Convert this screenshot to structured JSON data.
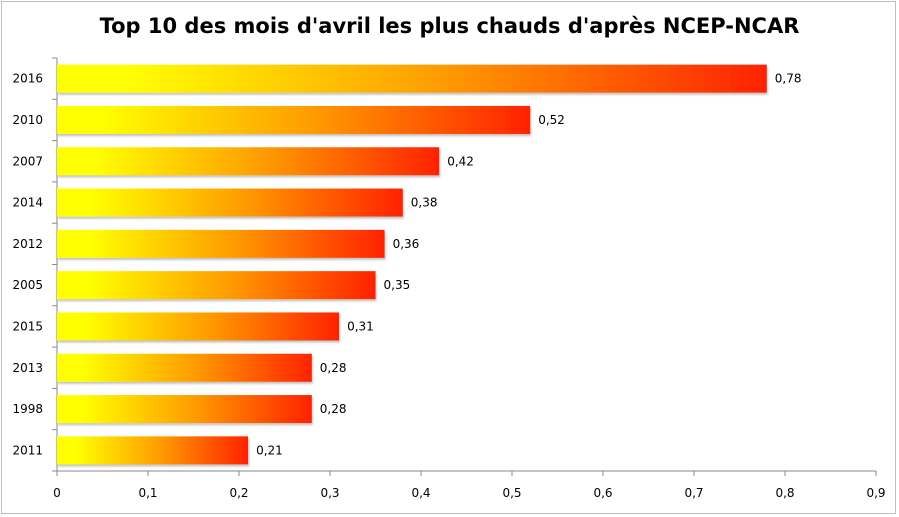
{
  "chart_data": {
    "type": "bar",
    "orientation": "horizontal",
    "title": "Top 10 des mois d'avril les plus chauds d'après NCEP-NCAR",
    "categories": [
      "2016",
      "2010",
      "2007",
      "2014",
      "2012",
      "2005",
      "2015",
      "2013",
      "1998",
      "2011"
    ],
    "values": [
      0.78,
      0.52,
      0.42,
      0.38,
      0.36,
      0.35,
      0.31,
      0.28,
      0.28,
      0.21
    ],
    "value_labels": [
      "0,78",
      "0,52",
      "0,42",
      "0,38",
      "0,36",
      "0,35",
      "0,31",
      "0,28",
      "0,28",
      "0,21"
    ],
    "xlim": [
      0,
      0.9
    ],
    "x_ticks": [
      0,
      0.1,
      0.2,
      0.3,
      0.4,
      0.5,
      0.6,
      0.7,
      0.8,
      0.9
    ],
    "x_tick_labels": [
      "0",
      "0,1",
      "0,2",
      "0,3",
      "0,4",
      "0,5",
      "0,6",
      "0,7",
      "0,8",
      "0,9"
    ],
    "xlabel": "",
    "ylabel": "",
    "grid": false,
    "legend": "none",
    "colors": {
      "gradient_start": "#ffff00",
      "gradient_mid": "#ff9900",
      "gradient_end": "#ff2200"
    }
  }
}
